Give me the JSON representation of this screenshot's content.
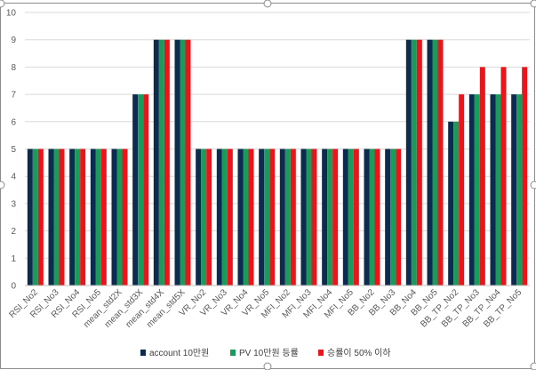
{
  "chart_data": {
    "type": "bar",
    "categories": [
      "RSI_No2",
      "RSI_No3",
      "RSI_No4",
      "RSI_No5",
      "mean_std2X",
      "mean_std3X",
      "mean_std4X",
      "mean_std5X",
      "VR_No2",
      "VR_No3",
      "VR_No4",
      "VR_No5",
      "MFI_No2",
      "MFI_No3",
      "MFI_No4",
      "MFI_No5",
      "BB_No2",
      "BB_No3",
      "BB_No4",
      "BB_No5",
      "BB_TP_No2",
      "BB_TP_No3",
      "BB_TP_No4",
      "BB_TP_No5"
    ],
    "series": [
      {
        "name": "account 10만원",
        "color": "#0d2b4e",
        "values": [
          5,
          5,
          5,
          5,
          5,
          7,
          9,
          9,
          5,
          5,
          5,
          5,
          5,
          5,
          5,
          5,
          5,
          5,
          9,
          9,
          6,
          7,
          7,
          7
        ]
      },
      {
        "name": "PV 10만원 등률",
        "color": "#1a9b5b",
        "values": [
          5,
          5,
          5,
          5,
          5,
          7,
          9,
          9,
          5,
          5,
          5,
          5,
          5,
          5,
          5,
          5,
          5,
          5,
          9,
          9,
          6,
          7,
          7,
          7
        ]
      },
      {
        "name": "승률이 50% 이하",
        "color": "#e8161b",
        "values": [
          5,
          5,
          5,
          5,
          5,
          7,
          9,
          9,
          5,
          5,
          5,
          5,
          5,
          5,
          5,
          5,
          5,
          5,
          9,
          9,
          7,
          8,
          8,
          8
        ]
      }
    ],
    "yticks": [
      "0",
      "1",
      "2",
      "3",
      "4",
      "5",
      "6",
      "7",
      "8",
      "9",
      "10"
    ],
    "ylim": [
      0,
      10
    ],
    "grid": true,
    "legend_position": "bottom",
    "title": "",
    "xlabel": "",
    "ylabel": ""
  }
}
